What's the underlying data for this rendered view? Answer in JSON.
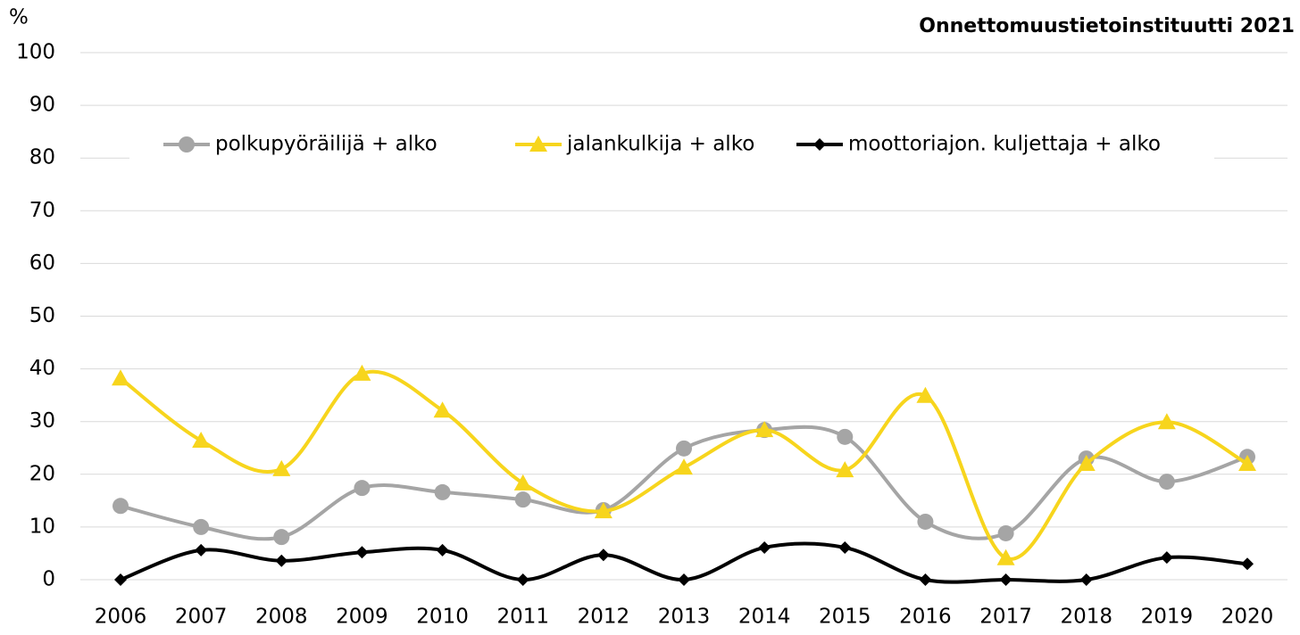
{
  "chart_data": {
    "type": "line",
    "unit_label": "%",
    "source": "Onnettomuustietoinstituutti  2021",
    "categories": [
      "2006",
      "2007",
      "2008",
      "2009",
      "2010",
      "2011",
      "2012",
      "2013",
      "2014",
      "2015",
      "2016",
      "2017",
      "2018",
      "2019",
      "2020"
    ],
    "series": [
      {
        "name": "polkupyöräilijä + alko",
        "color": "#a5a5a5",
        "marker": "circle",
        "values": [
          14.0,
          10.0,
          8.1,
          17.4,
          16.6,
          15.2,
          13.2,
          24.9,
          28.4,
          27.1,
          11.0,
          8.8,
          23.0,
          18.6,
          23.3
        ]
      },
      {
        "name": "jalankulkija + alko",
        "color": "#f7d51d",
        "marker": "triangle",
        "values": [
          38.2,
          26.4,
          21.0,
          39.1,
          32.1,
          18.3,
          13.0,
          21.3,
          28.4,
          20.8,
          34.9,
          4.1,
          22.0,
          29.9,
          22.0
        ]
      },
      {
        "name": "moottoriajon. kuljettaja + alko",
        "color": "#000000",
        "marker": "diamond",
        "values": [
          0,
          5.6,
          3.6,
          5.2,
          5.6,
          0,
          4.7,
          0,
          6.1,
          6.1,
          0,
          0,
          0,
          4.2,
          3.0
        ]
      }
    ],
    "ylim": [
      0,
      100
    ],
    "yticks": [
      0,
      10,
      20,
      30,
      40,
      50,
      60,
      70,
      80,
      90,
      100
    ],
    "grid": true,
    "legend": "top",
    "smooth": true
  }
}
